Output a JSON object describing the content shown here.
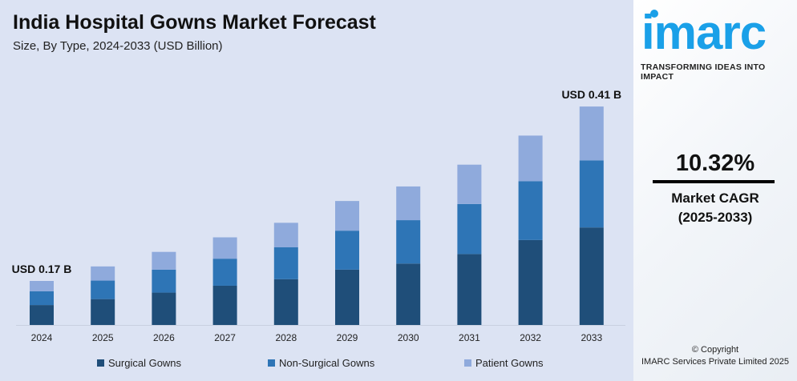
{
  "header": {
    "title": "India Hospital Gowns Market Forecast",
    "subtitle": "Size, By Type, 2024-2033 (USD Billion)"
  },
  "chart_data": {
    "type": "bar",
    "stacked": true,
    "title": "India Hospital Gowns Market Forecast",
    "subtitle": "Size, By Type, 2024-2033 (USD Billion)",
    "categories": [
      "2024",
      "2025",
      "2026",
      "2027",
      "2028",
      "2029",
      "2030",
      "2031",
      "2032",
      "2033"
    ],
    "series": [
      {
        "name": "Surgical Gowns",
        "color": "#1f4e79",
        "values": [
          0.077,
          0.084,
          0.093,
          0.103,
          0.112,
          0.125,
          0.133,
          0.146,
          0.166,
          0.183
        ]
      },
      {
        "name": "Non-Surgical Gowns",
        "color": "#2e75b6",
        "values": [
          0.053,
          0.06,
          0.066,
          0.071,
          0.078,
          0.088,
          0.094,
          0.103,
          0.115,
          0.126
        ]
      },
      {
        "name": "Patient Gowns",
        "color": "#8faadc",
        "values": [
          0.04,
          0.046,
          0.051,
          0.056,
          0.06,
          0.067,
          0.073,
          0.081,
          0.089,
          0.101
        ]
      }
    ],
    "annotations": [
      {
        "category": "2024",
        "text": "USD 0.17 B"
      },
      {
        "category": "2033",
        "text": "USD 0.41 B"
      }
    ],
    "legend": "bottom",
    "grid": false
  },
  "side": {
    "logo": "imarc",
    "tagline": "TRANSFORMING IDEAS INTO IMPACT",
    "cagr": "10.32%",
    "cagr_label": "Market CAGR",
    "cagr_period": "(2025-2033)",
    "copyright": "© Copyright",
    "company": "IMARC Services Private Limited 2025"
  }
}
